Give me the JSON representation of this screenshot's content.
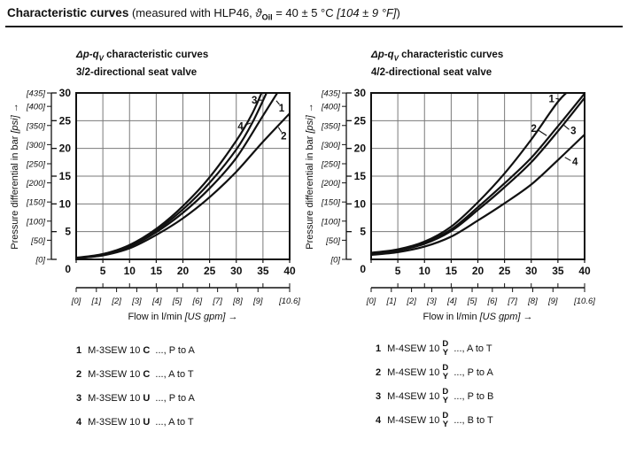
{
  "page": {
    "background": "#ffffff",
    "ink": "#111111",
    "grid_color": "#7a7a7a"
  },
  "header": {
    "title": "Characteristic curves",
    "measured_prefix": " (measured with HLP46, ",
    "theta": "ϑ",
    "theta_sub": "Oil",
    "temp_c": " = 40 ± 5 °C ",
    "temp_f": "[104 ± 9 °F]",
    "close": ")"
  },
  "chart_data": [
    {
      "id": "left",
      "type": "line",
      "title": {
        "prefix": "Δp-q",
        "sub": "V",
        "suffix": " characteristic curves",
        "line2": "3/2-directional seat valve"
      },
      "xlabel": {
        "prefix": "Flow in l/min ",
        "italic": "[US gpm]",
        "arrow": " →"
      },
      "ylabel": {
        "prefix": "Pressure differential in bar ",
        "italic": "[psi]",
        "arrow": " →"
      },
      "xlim": [
        0,
        40
      ],
      "ylim": [
        0,
        30
      ],
      "x_ticks": [
        0,
        5,
        10,
        15,
        20,
        25,
        30,
        35,
        40
      ],
      "y_ticks": [
        0,
        5,
        10,
        15,
        20,
        25,
        30
      ],
      "psi_ticks": [
        0,
        50,
        100,
        150,
        200,
        250,
        300,
        350,
        400,
        435
      ],
      "gpm_ticks": [
        0,
        1,
        2,
        3,
        4,
        5,
        6,
        7,
        8,
        9,
        10.6
      ],
      "psi_per_bar": 14.5038,
      "lpm_per_gpm": 3.7854,
      "grid": true,
      "series": [
        {
          "name": "1",
          "points": [
            [
              0,
              0.2
            ],
            [
              5,
              0.8
            ],
            [
              10,
              2.3
            ],
            [
              15,
              4.9
            ],
            [
              20,
              8.4
            ],
            [
              25,
              12.8
            ],
            [
              30,
              18.3
            ],
            [
              35,
              25.9
            ],
            [
              38.2,
              30.8
            ]
          ]
        },
        {
          "name": "2",
          "points": [
            [
              0,
              0.2
            ],
            [
              5,
              0.7
            ],
            [
              10,
              2.0
            ],
            [
              15,
              4.4
            ],
            [
              20,
              7.4
            ],
            [
              25,
              11.2
            ],
            [
              30,
              15.8
            ],
            [
              35,
              21.2
            ],
            [
              40,
              26.3
            ]
          ]
        },
        {
          "name": "3",
          "points": [
            [
              0,
              0.3
            ],
            [
              5,
              0.95
            ],
            [
              10,
              2.6
            ],
            [
              15,
              5.5
            ],
            [
              20,
              9.6
            ],
            [
              25,
              14.8
            ],
            [
              30,
              21.4
            ],
            [
              33,
              26.3
            ],
            [
              35,
              30.6
            ]
          ]
        },
        {
          "name": "4",
          "points": [
            [
              0,
              0.25
            ],
            [
              5,
              0.9
            ],
            [
              10,
              2.45
            ],
            [
              15,
              5.2
            ],
            [
              20,
              9.0
            ],
            [
              25,
              13.8
            ],
            [
              30,
              19.8
            ],
            [
              33,
              24.6
            ],
            [
              36,
              30.7
            ]
          ]
        }
      ],
      "curve_labels": [
        {
          "text": "3",
          "x": 33.4,
          "y": 28.7,
          "leader": [
            34.2,
            28.7,
            34.9,
            28.7
          ]
        },
        {
          "text": "1",
          "x": 38.5,
          "y": 27.3,
          "leader": [
            38.1,
            27.9,
            37.5,
            28.6
          ]
        },
        {
          "text": "4",
          "x": 30.8,
          "y": 24.0,
          "leader": [
            31.6,
            24.2,
            32.7,
            24.6
          ]
        },
        {
          "text": "2",
          "x": 38.9,
          "y": 22.3,
          "leader": [
            38.5,
            22.9,
            37.9,
            23.8
          ]
        }
      ]
    },
    {
      "id": "right",
      "type": "line",
      "title": {
        "prefix": "Δp-q",
        "sub": "V",
        "suffix": " characteristic curves",
        "line2": "4/2-directional seat valve"
      },
      "xlabel": {
        "prefix": "Flow in l/min ",
        "italic": "[US gpm]",
        "arrow": " →"
      },
      "ylabel": {
        "prefix": "Pressure differential in bar ",
        "italic": "[psi]",
        "arrow": " →"
      },
      "xlim": [
        0,
        40
      ],
      "ylim": [
        0,
        30
      ],
      "x_ticks": [
        0,
        5,
        10,
        15,
        20,
        25,
        30,
        35,
        40
      ],
      "y_ticks": [
        0,
        5,
        10,
        15,
        20,
        25,
        30
      ],
      "psi_ticks": [
        0,
        50,
        100,
        150,
        200,
        250,
        300,
        350,
        400,
        435
      ],
      "gpm_ticks": [
        0,
        1,
        2,
        3,
        4,
        5,
        6,
        7,
        8,
        9,
        10.6
      ],
      "psi_per_bar": 14.5038,
      "lpm_per_gpm": 3.7854,
      "grid": true,
      "series": [
        {
          "name": "1",
          "points": [
            [
              0,
              1.2
            ],
            [
              5,
              1.8
            ],
            [
              10,
              3.2
            ],
            [
              15,
              5.9
            ],
            [
              20,
              10.3
            ],
            [
              25,
              15.5
            ],
            [
              30,
              21.6
            ],
            [
              35,
              28.4
            ],
            [
              37.8,
              31
            ]
          ]
        },
        {
          "name": "2",
          "points": [
            [
              0,
              1.1
            ],
            [
              5,
              1.7
            ],
            [
              10,
              3.0
            ],
            [
              15,
              5.4
            ],
            [
              20,
              9.4
            ],
            [
              25,
              13.7
            ],
            [
              30,
              18.3
            ],
            [
              35,
              24.0
            ],
            [
              40,
              29.9
            ]
          ]
        },
        {
          "name": "3",
          "points": [
            [
              0,
              1.0
            ],
            [
              5,
              1.6
            ],
            [
              10,
              2.8
            ],
            [
              15,
              5.1
            ],
            [
              20,
              8.9
            ],
            [
              25,
              13.0
            ],
            [
              30,
              17.5
            ],
            [
              35,
              23.1
            ],
            [
              40,
              29.1
            ]
          ]
        },
        {
          "name": "4",
          "points": [
            [
              0,
              0.8
            ],
            [
              5,
              1.3
            ],
            [
              10,
              2.3
            ],
            [
              15,
              4.1
            ],
            [
              20,
              7.0
            ],
            [
              25,
              10.1
            ],
            [
              30,
              13.5
            ],
            [
              35,
              17.9
            ],
            [
              40,
              22.5
            ]
          ]
        }
      ],
      "curve_labels": [
        {
          "text": "1",
          "x": 33.8,
          "y": 29.0,
          "leader": [
            34.6,
            29.0,
            35.6,
            28.8
          ]
        },
        {
          "text": "2",
          "x": 30.5,
          "y": 23.6,
          "leader": [
            31.3,
            23.3,
            32.9,
            22.3
          ]
        },
        {
          "text": "3",
          "x": 37.9,
          "y": 23.2,
          "leader": [
            37.1,
            23.4,
            36.1,
            24.2
          ]
        },
        {
          "text": "4",
          "x": 38.2,
          "y": 17.6,
          "leader": [
            37.4,
            17.8,
            36.3,
            18.4
          ]
        }
      ]
    }
  ],
  "legends": [
    {
      "id": "left",
      "rows": [
        {
          "num": "1",
          "model": "M-3SEW 10",
          "variant": "C",
          "rest": "..., P to A"
        },
        {
          "num": "2",
          "model": "M-3SEW 10",
          "variant": "C",
          "rest": "..., A to T"
        },
        {
          "num": "3",
          "model": "M-3SEW 10",
          "variant": "U",
          "rest": "..., P to A"
        },
        {
          "num": "4",
          "model": "M-3SEW 10",
          "variant": "U",
          "rest": "..., A to T"
        }
      ]
    },
    {
      "id": "right",
      "rows": [
        {
          "num": "1",
          "model": "M-4SEW 10",
          "variant_stack": [
            "D",
            "Y"
          ],
          "rest": "..., A to T"
        },
        {
          "num": "2",
          "model": "M-4SEW 10",
          "variant_stack": [
            "D",
            "Y"
          ],
          "rest": "..., P to A"
        },
        {
          "num": "3",
          "model": "M-4SEW 10",
          "variant_stack": [
            "D",
            "Y"
          ],
          "rest": "..., P to B"
        },
        {
          "num": "4",
          "model": "M-4SEW 10",
          "variant_stack": [
            "D",
            "Y"
          ],
          "rest": "..., B to T"
        }
      ]
    }
  ]
}
